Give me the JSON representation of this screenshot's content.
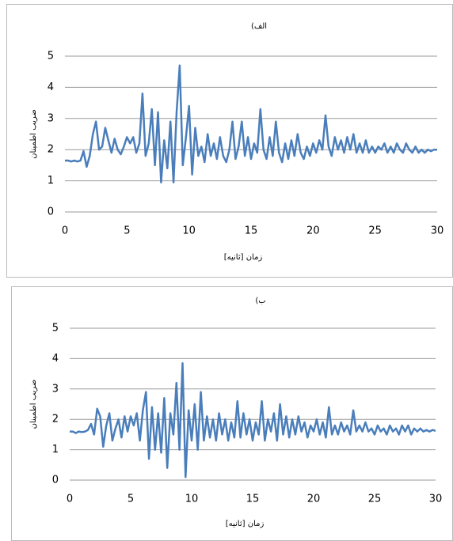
{
  "chart_data": [
    {
      "type": "line",
      "title": "(الف",
      "xlabel": "زمان [ثانیه]",
      "ylabel": "ضریب اطمینان",
      "x": [
        0,
        0.25,
        0.5,
        0.75,
        1,
        1.25,
        1.5,
        1.75,
        2,
        2.25,
        2.5,
        2.75,
        3,
        3.25,
        3.5,
        3.75,
        4,
        4.25,
        4.5,
        4.75,
        5,
        5.25,
        5.5,
        5.75,
        6,
        6.25,
        6.5,
        6.75,
        7,
        7.25,
        7.5,
        7.75,
        8,
        8.25,
        8.5,
        8.75,
        9,
        9.25,
        9.5,
        9.75,
        10,
        10.25,
        10.5,
        10.75,
        11,
        11.25,
        11.5,
        11.75,
        12,
        12.25,
        12.5,
        12.75,
        13,
        13.25,
        13.5,
        13.75,
        14,
        14.25,
        14.5,
        14.75,
        15,
        15.25,
        15.5,
        15.75,
        16,
        16.25,
        16.5,
        16.75,
        17,
        17.25,
        17.5,
        17.75,
        18,
        18.25,
        18.5,
        18.75,
        19,
        19.25,
        19.5,
        19.75,
        20,
        20.25,
        20.5,
        20.75,
        21,
        21.25,
        21.5,
        21.75,
        22,
        22.25,
        22.5,
        22.75,
        23,
        23.25,
        23.5,
        23.75,
        24,
        24.25,
        24.5,
        24.75,
        25,
        25.25,
        25.5,
        25.75,
        26,
        26.25,
        26.5,
        26.75,
        27,
        27.25,
        27.5,
        27.75,
        28,
        28.25,
        28.5,
        28.75,
        29,
        29.25,
        29.5,
        29.75,
        30
      ],
      "series": [
        {
          "color": "#4a7ebb",
          "values": [
            1.65,
            1.65,
            1.62,
            1.65,
            1.62,
            1.65,
            1.95,
            1.45,
            1.8,
            2.5,
            2.9,
            2.0,
            2.1,
            2.7,
            2.3,
            1.9,
            2.35,
            2.0,
            1.85,
            2.1,
            2.4,
            2.2,
            2.4,
            1.9,
            2.2,
            3.8,
            1.8,
            2.2,
            3.3,
            1.5,
            3.2,
            0.95,
            2.3,
            1.4,
            2.9,
            0.95,
            3.2,
            4.7,
            1.5,
            2.4,
            3.4,
            1.2,
            2.7,
            1.8,
            2.1,
            1.6,
            2.5,
            1.8,
            2.2,
            1.7,
            2.4,
            1.8,
            1.6,
            2.0,
            2.9,
            1.7,
            2.1,
            2.9,
            1.8,
            2.4,
            1.7,
            2.2,
            1.9,
            3.3,
            2.0,
            1.7,
            2.4,
            1.8,
            2.9,
            1.9,
            1.6,
            2.2,
            1.7,
            2.3,
            1.8,
            2.5,
            1.9,
            1.7,
            2.1,
            1.8,
            2.2,
            1.9,
            2.3,
            2.0,
            3.1,
            2.1,
            1.8,
            2.4,
            2.0,
            2.3,
            1.9,
            2.4,
            2.0,
            2.5,
            1.9,
            2.2,
            1.9,
            2.3,
            1.9,
            2.1,
            1.9,
            2.1,
            2.0,
            2.2,
            1.9,
            2.1,
            1.9,
            2.2,
            2.0,
            1.9,
            2.2,
            2.0,
            1.9,
            2.1,
            1.9,
            2.0,
            1.9,
            2.0,
            1.95,
            2.0,
            2.0
          ]
        }
      ],
      "xlim": [
        0,
        30
      ],
      "xticks": [
        0,
        5,
        10,
        15,
        20,
        25,
        30
      ],
      "ylim": [
        0,
        5
      ],
      "yticks": [
        0,
        1,
        2,
        3,
        4,
        5
      ],
      "grid": true
    },
    {
      "type": "line",
      "title": "(ب",
      "xlabel": "زمان [ثانیه]",
      "ylabel": "ضریب اطمینان",
      "x": [
        0,
        0.25,
        0.5,
        0.75,
        1,
        1.25,
        1.5,
        1.75,
        2,
        2.25,
        2.5,
        2.75,
        3,
        3.25,
        3.5,
        3.75,
        4,
        4.25,
        4.5,
        4.75,
        5,
        5.25,
        5.5,
        5.75,
        6,
        6.25,
        6.5,
        6.75,
        7,
        7.25,
        7.5,
        7.75,
        8,
        8.25,
        8.5,
        8.75,
        9,
        9.25,
        9.5,
        9.75,
        10,
        10.25,
        10.5,
        10.75,
        11,
        11.25,
        11.5,
        11.75,
        12,
        12.25,
        12.5,
        12.75,
        13,
        13.25,
        13.5,
        13.75,
        14,
        14.25,
        14.5,
        14.75,
        15,
        15.25,
        15.5,
        15.75,
        16,
        16.25,
        16.5,
        16.75,
        17,
        17.25,
        17.5,
        17.75,
        18,
        18.25,
        18.5,
        18.75,
        19,
        19.25,
        19.5,
        19.75,
        20,
        20.25,
        20.5,
        20.75,
        21,
        21.25,
        21.5,
        21.75,
        22,
        22.25,
        22.5,
        22.75,
        23,
        23.25,
        23.5,
        23.75,
        24,
        24.25,
        24.5,
        24.75,
        25,
        25.25,
        25.5,
        25.75,
        26,
        26.25,
        26.5,
        26.75,
        27,
        27.25,
        27.5,
        27.75,
        28,
        28.25,
        28.5,
        28.75,
        29,
        29.25,
        29.5,
        29.75,
        30
      ],
      "series": [
        {
          "color": "#4a7ebb",
          "values": [
            1.6,
            1.6,
            1.55,
            1.6,
            1.58,
            1.6,
            1.65,
            1.85,
            1.5,
            2.35,
            2.1,
            1.1,
            1.8,
            2.2,
            1.3,
            1.7,
            2.0,
            1.4,
            2.1,
            1.6,
            2.1,
            1.8,
            2.2,
            1.3,
            2.3,
            2.9,
            0.7,
            2.4,
            1.0,
            2.2,
            0.9,
            2.7,
            0.4,
            2.2,
            1.5,
            3.2,
            1.0,
            3.85,
            0.1,
            2.3,
            1.3,
            2.5,
            1.0,
            2.9,
            1.3,
            2.1,
            1.4,
            2.0,
            1.3,
            2.2,
            1.5,
            2.0,
            1.3,
            1.9,
            1.4,
            2.6,
            1.4,
            2.2,
            1.5,
            2.0,
            1.3,
            1.9,
            1.5,
            2.6,
            1.3,
            2.0,
            1.6,
            2.2,
            1.3,
            2.5,
            1.5,
            2.1,
            1.4,
            2.0,
            1.5,
            2.1,
            1.6,
            1.9,
            1.4,
            1.8,
            1.6,
            2.0,
            1.5,
            1.9,
            1.4,
            2.4,
            1.5,
            1.8,
            1.5,
            1.9,
            1.6,
            1.8,
            1.5,
            2.3,
            1.6,
            1.8,
            1.6,
            1.9,
            1.6,
            1.7,
            1.5,
            1.8,
            1.6,
            1.7,
            1.5,
            1.8,
            1.6,
            1.7,
            1.5,
            1.8,
            1.6,
            1.8,
            1.5,
            1.7,
            1.6,
            1.7,
            1.6,
            1.65,
            1.6,
            1.65,
            1.62
          ]
        }
      ],
      "xlim": [
        0,
        30
      ],
      "xticks": [
        0,
        5,
        10,
        15,
        20,
        25,
        30
      ],
      "ylim": [
        0,
        5
      ],
      "yticks": [
        0,
        1,
        2,
        3,
        4,
        5
      ],
      "grid": true
    }
  ]
}
